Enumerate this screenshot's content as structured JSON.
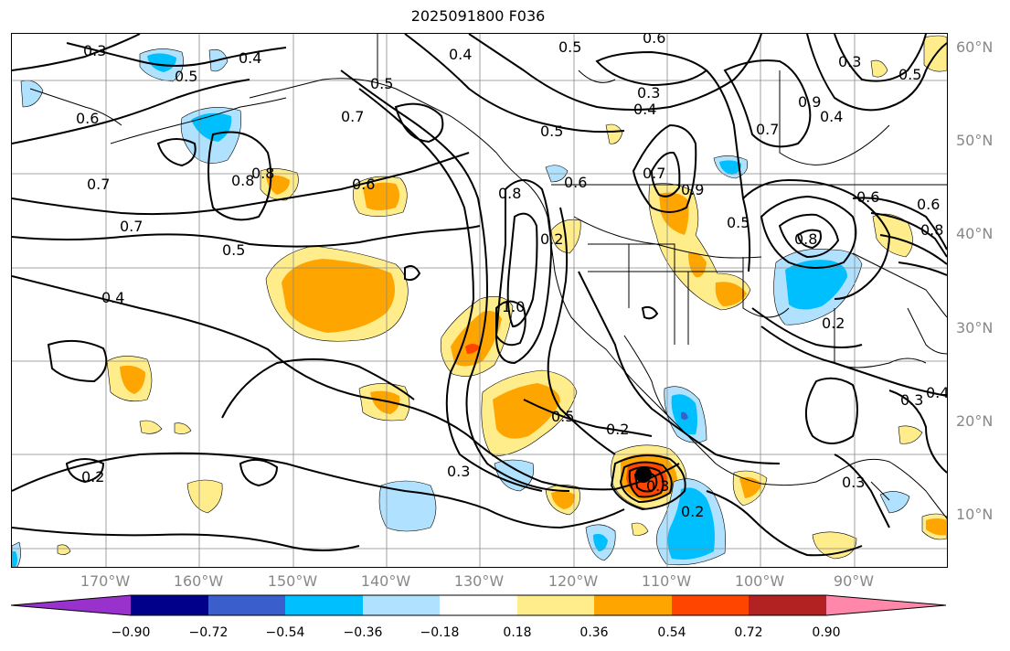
{
  "title": "2025091800 F036",
  "lat_labels": [
    "60°N",
    "50°N",
    "40°N",
    "30°N",
    "20°N",
    "10°N"
  ],
  "lon_labels": [
    "170°W",
    "160°W",
    "150°W",
    "140°W",
    "130°W",
    "120°W",
    "110°W",
    "100°W",
    "90°W"
  ],
  "colorbar": {
    "colors": [
      "#9932cc",
      "#00008b",
      "#3a5fcd",
      "#00bfff",
      "#b0e2ff",
      "#ffffff",
      "#ffec8b",
      "#ffa500",
      "#ff4500",
      "#b22222",
      "#ff88aa"
    ],
    "tick_labels": [
      "−0.90",
      "−0.72",
      "−0.54",
      "−0.36",
      "−0.18",
      "0.18",
      "0.36",
      "0.54",
      "0.72",
      "0.90"
    ]
  },
  "contour_labels": [
    "0.3",
    "0.5",
    "0.4",
    "0.6",
    "0.4",
    "0.5",
    "0.3",
    "0.5",
    "0.6",
    "0.5",
    "0.8",
    "0.7",
    "0.3",
    "0.4",
    "0.5",
    "0.9",
    "0.7",
    "0.4",
    "0.8",
    "0.7",
    "0.6",
    "0.7",
    "0.8",
    "0.6",
    "0.5",
    "0.6",
    "0.9",
    "0.7",
    "0.8",
    "0.6",
    "0.8",
    "0.4",
    "1.0",
    "0.5",
    "0.2",
    "0.2",
    "0.3",
    "0.5",
    "0.2",
    "0.4",
    "0.3",
    "0.3",
    "0.3",
    "0.2",
    "0.2"
  ]
}
